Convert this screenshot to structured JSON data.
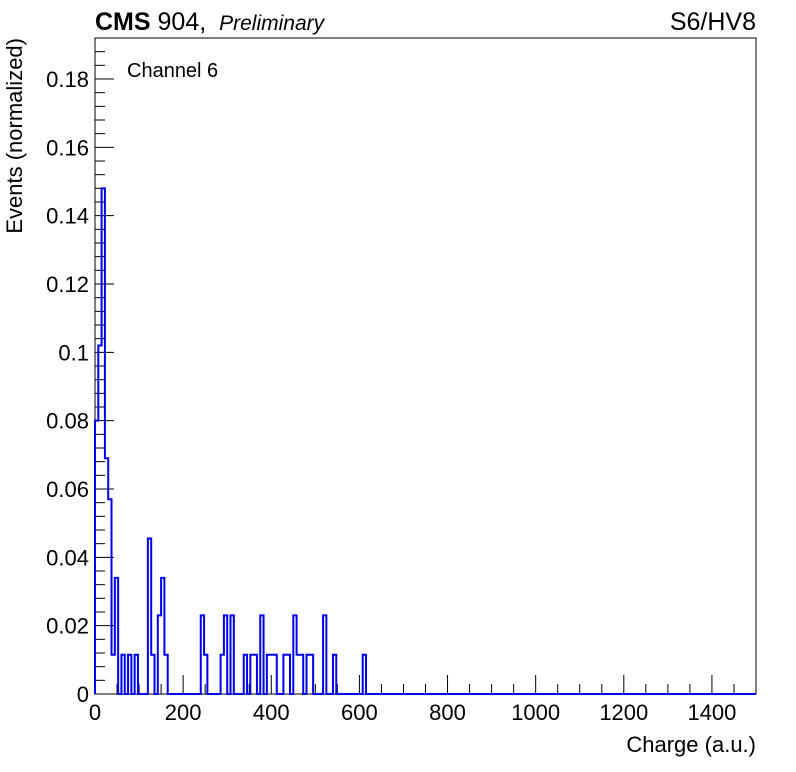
{
  "header": {
    "experiment": "CMS",
    "subtitle": " 904,",
    "status": "Preliminary",
    "run_label": "S6/HV8"
  },
  "chart_data": {
    "type": "histogram",
    "annotation": "Channel 6",
    "xlabel": "Charge (a.u.)",
    "ylabel": "Events (normalized)",
    "xlim": [
      0,
      1500
    ],
    "ylim": [
      0,
      0.192
    ],
    "bin_width": 7.5,
    "x_ticks": [
      0,
      200,
      400,
      600,
      800,
      1000,
      1200,
      1400
    ],
    "y_ticks": [
      0,
      0.02,
      0.04,
      0.06,
      0.08,
      0.1,
      0.12,
      0.14,
      0.16,
      0.18
    ],
    "y_tick_labels": [
      "0",
      "0.02",
      "0.04",
      "0.06",
      "0.08",
      "0.1",
      "0.12",
      "0.14",
      "0.16",
      "0.18"
    ],
    "line_color": "#0000ee",
    "series": [
      {
        "values": [
          0.08,
          0.102,
          0.148,
          0.069,
          0.057,
          0.0115,
          0.034,
          0,
          0.0115,
          0,
          0.0115,
          0,
          0.0115,
          0,
          0,
          0,
          0.0455,
          0.0115,
          0,
          0.023,
          0.034,
          0.0115,
          0,
          0,
          0,
          0,
          0,
          0,
          0,
          0,
          0,
          0,
          0.023,
          0.0115,
          0,
          0,
          0,
          0,
          0.0115,
          0.023,
          0,
          0.023,
          0,
          0,
          0,
          0.0115,
          0,
          0.0115,
          0.0115,
          0,
          0.023,
          0,
          0.0115,
          0.0115,
          0.0115,
          0,
          0,
          0.0115,
          0.0115,
          0,
          0.023,
          0.0115,
          0.0115,
          0,
          0.0115,
          0.0115,
          0,
          0,
          0,
          0.023,
          0,
          0,
          0.0115,
          0,
          0,
          0,
          0,
          0,
          0,
          0,
          0,
          0.0115,
          0,
          0,
          0,
          0,
          0,
          0,
          0,
          0,
          0,
          0,
          0,
          0,
          0,
          0,
          0,
          0,
          0,
          0,
          0,
          0,
          0,
          0,
          0,
          0,
          0,
          0,
          0,
          0,
          0,
          0,
          0,
          0,
          0,
          0,
          0,
          0,
          0,
          0,
          0,
          0,
          0,
          0,
          0,
          0,
          0,
          0,
          0,
          0,
          0,
          0,
          0,
          0,
          0,
          0,
          0,
          0,
          0,
          0,
          0,
          0,
          0,
          0,
          0,
          0,
          0,
          0,
          0,
          0,
          0,
          0,
          0,
          0,
          0,
          0,
          0,
          0,
          0,
          0,
          0,
          0,
          0,
          0,
          0,
          0,
          0,
          0,
          0,
          0,
          0,
          0,
          0,
          0,
          0,
          0,
          0,
          0,
          0,
          0,
          0,
          0,
          0,
          0,
          0,
          0,
          0,
          0,
          0,
          0,
          0,
          0,
          0,
          0,
          0,
          0,
          0,
          0,
          0,
          0
        ]
      }
    ]
  }
}
